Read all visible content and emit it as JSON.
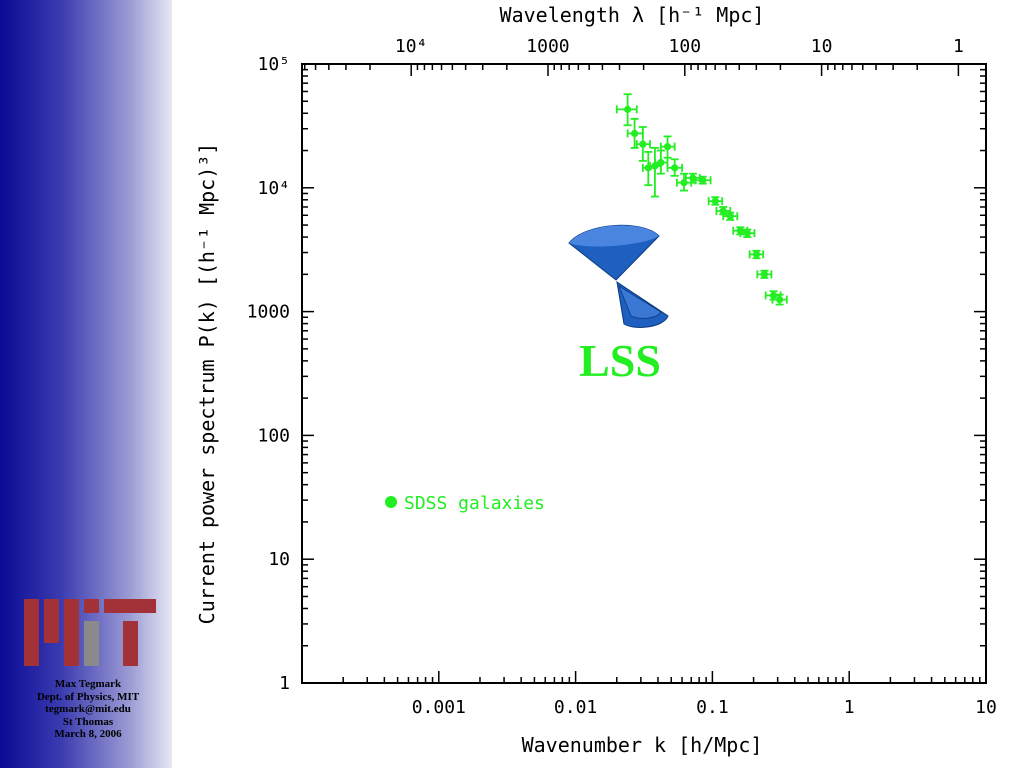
{
  "slide": {
    "author_lines": [
      "Max Tegmark",
      "Dept. of Physics, MIT",
      "tegmark@mit.edu",
      "St Thomas",
      "March 8, 2006"
    ],
    "logo_name": "MIT logo",
    "colors": {
      "sidebar_dark": "#0a0a94",
      "sidebar_light": "#e6e6f4",
      "logo_red": "#a33138",
      "logo_gray": "#8a8a8a",
      "data_green": "#22ee22",
      "icon_blue": "#1f5fbf"
    }
  },
  "chart_data": {
    "type": "scatter",
    "xscale": "log",
    "yscale": "log",
    "xlim": [
      0.0001,
      10
    ],
    "ylim": [
      1,
      100000
    ],
    "xlabel": "Wavenumber k [h/Mpc]",
    "ylabel": "Current power spectrum P(k) [(h⁻¹ Mpc)³]",
    "top_axis_label": "Wavelength λ [h⁻¹ Mpc]",
    "x_tick_labels": [
      "0.001",
      "0.01",
      "0.1",
      "1",
      "10"
    ],
    "x_tick_values": [
      0.001,
      0.01,
      0.1,
      1,
      10
    ],
    "top_tick_labels": [
      "10⁴",
      "1000",
      "100",
      "10",
      "1"
    ],
    "top_tick_values": [
      10000,
      1000,
      100,
      10,
      1
    ],
    "y_tick_labels": [
      "1",
      "10",
      "100",
      "1000",
      "10⁴",
      "10⁵"
    ],
    "y_tick_values": [
      1,
      10,
      100,
      1000,
      10000,
      100000
    ],
    "grid": false,
    "legend_position": "lower-left",
    "annotation": "LSS",
    "series": [
      {
        "name": "SDSS galaxies",
        "color": "#22ee22",
        "points": [
          {
            "k": 0.024,
            "p": 43000,
            "p_lo": 32000,
            "p_hi": 57000,
            "k_lo": 0.02,
            "k_hi": 0.028
          },
          {
            "k": 0.027,
            "p": 27500,
            "p_lo": 21000,
            "p_hi": 36000,
            "k_lo": 0.024,
            "k_hi": 0.031
          },
          {
            "k": 0.031,
            "p": 22500,
            "p_lo": 16500,
            "p_hi": 31000,
            "k_lo": 0.028,
            "k_hi": 0.035
          },
          {
            "k": 0.034,
            "p": 14500,
            "p_lo": 10500,
            "p_hi": 19500,
            "k_lo": 0.031,
            "k_hi": 0.038
          },
          {
            "k": 0.038,
            "p": 15000,
            "p_lo": 8500,
            "p_hi": 21000,
            "k_lo": 0.035,
            "k_hi": 0.042
          },
          {
            "k": 0.042,
            "p": 16000,
            "p_lo": 13000,
            "p_hi": 20000,
            "k_lo": 0.038,
            "k_hi": 0.047
          },
          {
            "k": 0.047,
            "p": 21500,
            "p_lo": 17500,
            "p_hi": 26000,
            "k_lo": 0.042,
            "k_hi": 0.053
          },
          {
            "k": 0.053,
            "p": 14500,
            "p_lo": 12500,
            "p_hi": 17000,
            "k_lo": 0.047,
            "k_hi": 0.06
          },
          {
            "k": 0.062,
            "p": 11000,
            "p_lo": 9500,
            "p_hi": 13000,
            "k_lo": 0.055,
            "k_hi": 0.07
          },
          {
            "k": 0.072,
            "p": 12000,
            "p_lo": 11000,
            "p_hi": 13000,
            "k_lo": 0.064,
            "k_hi": 0.081
          },
          {
            "k": 0.085,
            "p": 11500,
            "p_lo": 10800,
            "p_hi": 12300,
            "k_lo": 0.075,
            "k_hi": 0.097
          },
          {
            "k": 0.105,
            "p": 7800,
            "p_lo": 7300,
            "p_hi": 8400,
            "k_lo": 0.094,
            "k_hi": 0.118
          },
          {
            "k": 0.12,
            "p": 6500,
            "p_lo": 6100,
            "p_hi": 7000,
            "k_lo": 0.107,
            "k_hi": 0.135
          },
          {
            "k": 0.135,
            "p": 5900,
            "p_lo": 5500,
            "p_hi": 6300,
            "k_lo": 0.12,
            "k_hi": 0.152
          },
          {
            "k": 0.16,
            "p": 4500,
            "p_lo": 4200,
            "p_hi": 4800,
            "k_lo": 0.142,
            "k_hi": 0.18
          },
          {
            "k": 0.18,
            "p": 4300,
            "p_lo": 4000,
            "p_hi": 4600,
            "k_lo": 0.16,
            "k_hi": 0.203
          },
          {
            "k": 0.21,
            "p": 2900,
            "p_lo": 2700,
            "p_hi": 3100,
            "k_lo": 0.187,
            "k_hi": 0.235
          },
          {
            "k": 0.24,
            "p": 2000,
            "p_lo": 1870,
            "p_hi": 2140,
            "k_lo": 0.213,
            "k_hi": 0.27
          },
          {
            "k": 0.28,
            "p": 1350,
            "p_lo": 1250,
            "p_hi": 1460,
            "k_lo": 0.245,
            "k_hi": 0.315
          },
          {
            "k": 0.31,
            "p": 1250,
            "p_lo": 1140,
            "p_hi": 1370,
            "k_lo": 0.275,
            "k_hi": 0.35
          }
        ]
      }
    ]
  }
}
